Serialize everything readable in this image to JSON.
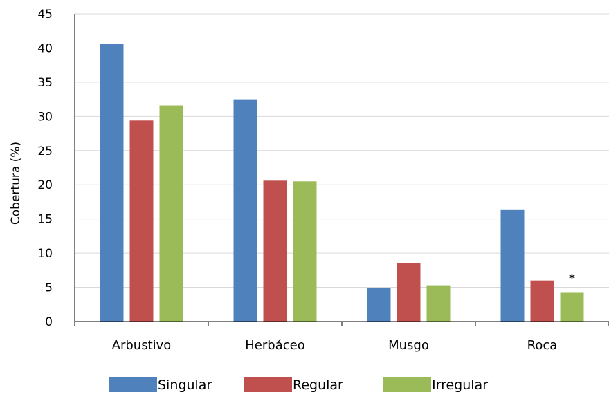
{
  "chart_data": {
    "type": "bar",
    "title": "",
    "xlabel": "",
    "ylabel": "Cobertura (%)",
    "ylim": [
      0,
      45
    ],
    "yticks": [
      0,
      5,
      10,
      15,
      20,
      25,
      30,
      35,
      40,
      45
    ],
    "categories": [
      "Arbustivo",
      "Herbáceo",
      "Musgo",
      "Roca"
    ],
    "series": [
      {
        "name": "Singular",
        "color": "#4f81bd",
        "values": [
          40.6,
          32.5,
          4.9,
          16.4
        ]
      },
      {
        "name": "Regular",
        "color": "#c0504d",
        "values": [
          29.4,
          20.6,
          8.5,
          6.0
        ]
      },
      {
        "name": "Irregular",
        "color": "#9bbb59",
        "values": [
          31.6,
          20.5,
          5.3,
          4.3
        ]
      }
    ],
    "grid": true,
    "legend_position": "bottom",
    "annotations": [
      {
        "text": "*",
        "category": "Roca",
        "series": "Irregular"
      }
    ]
  }
}
